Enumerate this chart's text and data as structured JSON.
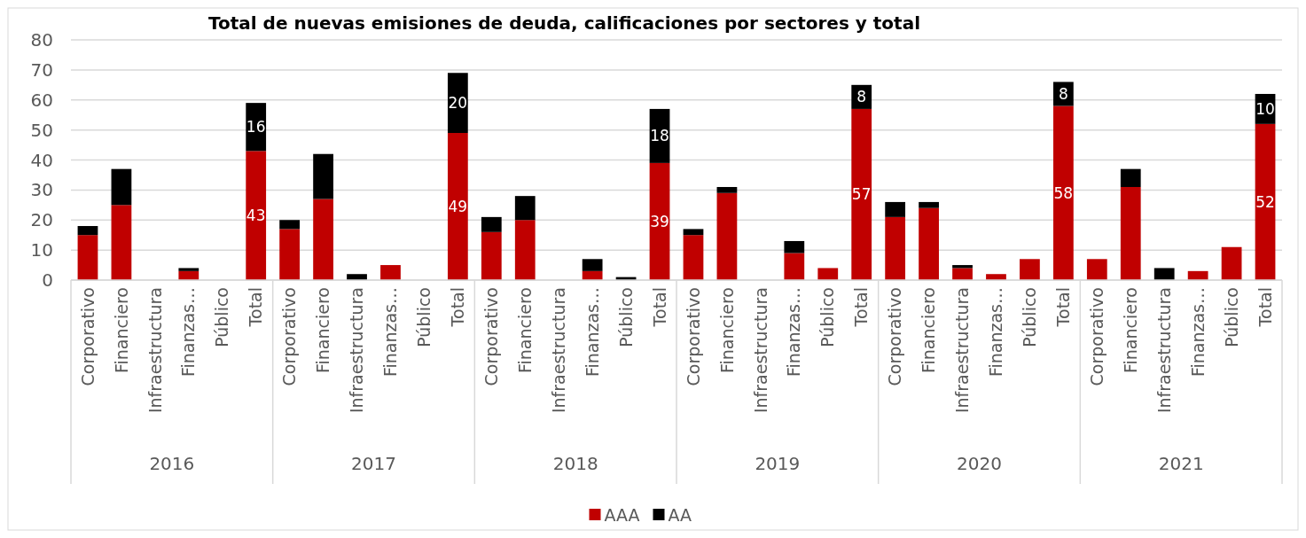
{
  "chart_data": {
    "type": "bar",
    "title": "Total de nuevas emisiones de deuda, calificaciones por sectores y total",
    "stacked": true,
    "categories": [
      "Corporativo",
      "Financiero",
      "Infraestructura",
      "Finanzas…",
      "Público",
      "Total",
      "Corporativo",
      "Financiero",
      "Infraestructura",
      "Finanzas…",
      "Público",
      "Total",
      "Corporativo",
      "Financiero",
      "Infraestructura",
      "Finanzas…",
      "Público",
      "Total",
      "Corporativo",
      "Financiero",
      "Infraestructura",
      "Finanzas…",
      "Público",
      "Total",
      "Corporativo",
      "Financiero",
      "Infraestructura",
      "Finanzas…",
      "Público",
      "Total",
      "Corporativo",
      "Financiero",
      "Infraestructura",
      "Finanzas…",
      "Público",
      "Total"
    ],
    "annotations": [
      "2016",
      "2017",
      "2018",
      "2019",
      "2020",
      "2021"
    ],
    "series": [
      {
        "name": "AAA",
        "color": "#c00000",
        "values": [
          15,
          25,
          0,
          3,
          0,
          43,
          17,
          27,
          0,
          5,
          0,
          49,
          16,
          20,
          0,
          3,
          0,
          39,
          15,
          29,
          0,
          9,
          4,
          57,
          21,
          24,
          4,
          2,
          7,
          58,
          7,
          31,
          0,
          3,
          11,
          52
        ],
        "value_labels": [
          null,
          null,
          null,
          null,
          null,
          "43",
          null,
          null,
          null,
          null,
          null,
          "49",
          null,
          null,
          null,
          null,
          null,
          "39",
          null,
          null,
          null,
          null,
          null,
          "57",
          null,
          null,
          null,
          null,
          null,
          "58",
          null,
          null,
          null,
          null,
          null,
          "52"
        ]
      },
      {
        "name": "AA",
        "color": "#000000",
        "values": [
          3,
          12,
          0,
          1,
          0,
          16,
          3,
          15,
          2,
          0,
          0,
          20,
          5,
          8,
          0,
          4,
          1,
          18,
          2,
          2,
          0,
          4,
          0,
          8,
          5,
          2,
          1,
          0,
          0,
          8,
          0,
          6,
          4,
          0,
          0,
          10
        ],
        "value_labels": [
          null,
          null,
          null,
          null,
          null,
          "16",
          null,
          null,
          null,
          null,
          null,
          "20",
          null,
          null,
          null,
          null,
          null,
          "18",
          null,
          null,
          null,
          null,
          null,
          "8",
          null,
          null,
          null,
          null,
          null,
          "8",
          null,
          null,
          null,
          null,
          null,
          "10"
        ]
      }
    ],
    "ylim": [
      0,
      80
    ],
    "yticks": [
      0,
      10,
      20,
      30,
      40,
      50,
      60,
      70,
      80
    ],
    "grid": "y",
    "legend": "bottom"
  }
}
